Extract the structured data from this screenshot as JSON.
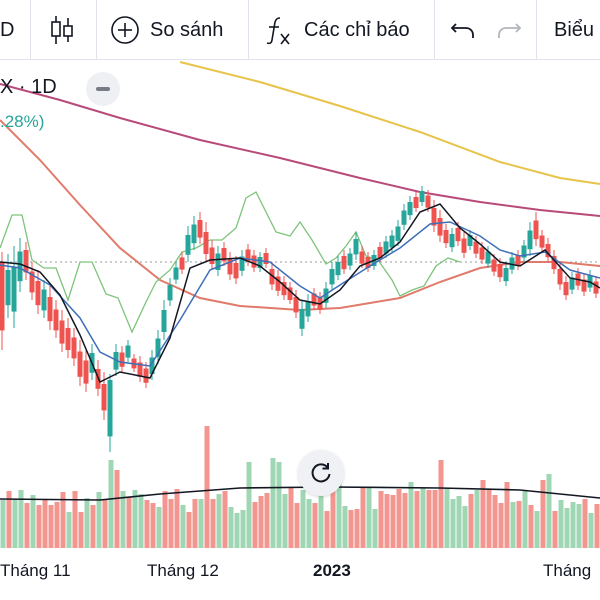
{
  "toolbar": {
    "interval_label": "D",
    "candles_icon": "candlestick-icon",
    "compare_label": "So sánh",
    "indicators_label": "Các chỉ báo",
    "chart_label": "Biểu"
  },
  "legend": {
    "symbol": "X · 1D",
    "change": ".28%)"
  },
  "x_axis_labels": [
    "Tháng 11",
    "Tháng 12",
    "2023",
    "Tháng"
  ],
  "colors": {
    "up": "#26a69a",
    "down": "#ef5350",
    "vol_up": "#9fd6b3",
    "vol_down": "#f2968f",
    "ma_fast": "#131722",
    "ma_mid": "#3f6fb8",
    "ma_slow": "#e07a6a",
    "ma_200": "#b84a7a",
    "ma_yellow": "#e8c34a",
    "green_line": "#7dc47a"
  }
}
